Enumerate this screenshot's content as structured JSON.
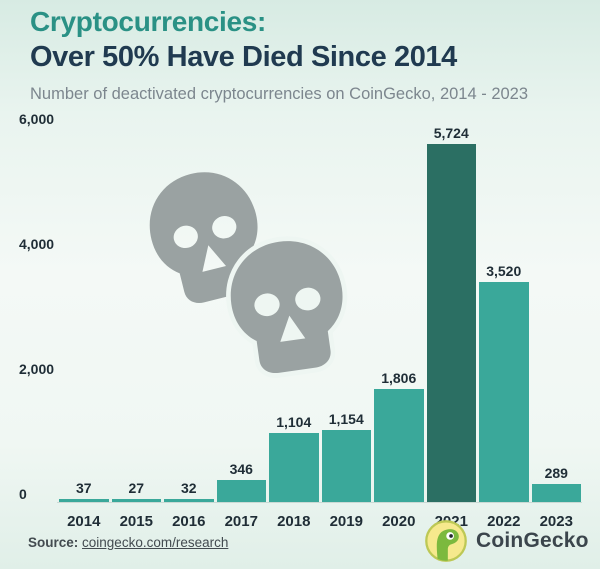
{
  "header": {
    "title_line1": "Cryptocurrencies:",
    "title_line2": "Over 50% Have Died Since 2014",
    "subtitle": "Number of deactivated cryptocurrencies on CoinGecko, 2014 - 2023"
  },
  "chart_data": {
    "type": "bar",
    "title": "Cryptocurrencies: Over 50% Have Died Since 2014",
    "subtitle": "Number of deactivated cryptocurrencies on CoinGecko, 2014 - 2023",
    "categories": [
      "2014",
      "2015",
      "2016",
      "2017",
      "2018",
      "2019",
      "2020",
      "2021",
      "2022",
      "2023"
    ],
    "values": [
      37,
      27,
      32,
      346,
      1104,
      1154,
      1806,
      5724,
      3520,
      289
    ],
    "value_labels": [
      "37",
      "27",
      "32",
      "346",
      "1,104",
      "1,154",
      "1,806",
      "5,724",
      "3,520",
      "289"
    ],
    "xlabel": "",
    "ylabel": "",
    "ylim": [
      0,
      6000
    ],
    "yticks": [
      0,
      2000,
      4000,
      6000
    ],
    "ytick_labels": [
      "0",
      "2,000",
      "4,000",
      "6,000"
    ],
    "grid": false,
    "legend": "none",
    "highlight_category": "2021",
    "bar_color": "#3aa89a",
    "highlight_color": "#2b6f63"
  },
  "decorations": {
    "skull_icons": [
      "skull-icon",
      "skull-icon"
    ]
  },
  "footer": {
    "source_label": "Source:",
    "source_link": "coingecko.com/research",
    "brand_name": "CoinGecko"
  },
  "colors": {
    "title_accent": "#2a9185",
    "title_dark": "#203a50",
    "subtitle_gray": "#7c868e",
    "axis_text": "#1f2d36",
    "skull_gray": "#9aa2a2",
    "skull_cut": "#eef6f2",
    "source_text": "#434b50",
    "brand_text": "#3b454c",
    "logo_circle": "#f6e98d",
    "logo_border": "#bdc855",
    "gecko_green": "#7cb93e"
  }
}
